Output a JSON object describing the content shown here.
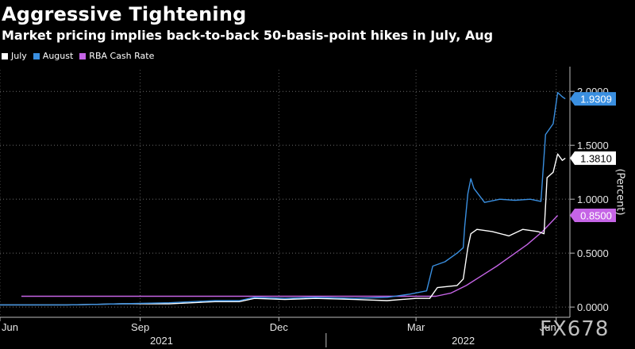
{
  "header": {
    "title": "Aggressive Tightening",
    "subtitle": "Market pricing implies back-to-back 50-basis-point hikes in July, Aug"
  },
  "watermark": "FX678",
  "chart_data": {
    "type": "line",
    "title": "Aggressive Tightening",
    "subtitle": "Market pricing implies back-to-back 50-basis-point hikes in July, Aug",
    "ylabel": "(Percent)",
    "ylim": [
      -0.08,
      2.2
    ],
    "yticks": [
      0,
      0.5,
      1,
      1.5,
      2
    ],
    "ytick_labels": [
      "0.0000",
      "0.5000",
      "1.0000",
      "1.5000",
      "2.0000"
    ],
    "xlim": [
      "2021-06-01",
      "2022-06-10"
    ],
    "xtick_labels": [
      {
        "date": "2021-06-01",
        "label": "Jun"
      },
      {
        "date": "2021-09-01",
        "label": "Sep"
      },
      {
        "date": "2021-12-01",
        "label": "Dec"
      },
      {
        "date": "2022-03-01",
        "label": "Mar"
      },
      {
        "date": "2022-06-01",
        "label": "Jun"
      }
    ],
    "year_labels": [
      {
        "date": "2021-09-15",
        "label": "2021"
      },
      {
        "date": "2022-04-01",
        "label": "2022"
      }
    ],
    "year_boundary": "2022-01-01",
    "grid": true,
    "legend_position": "top-left",
    "series": [
      {
        "name": "July",
        "color": "#ffffff",
        "last_value_label": "1.3810",
        "points": [
          [
            "2021-06-01",
            0.02
          ],
          [
            "2021-07-15",
            0.02
          ],
          [
            "2021-08-20",
            0.03
          ],
          [
            "2021-09-20",
            0.03
          ],
          [
            "2021-10-20",
            0.05
          ],
          [
            "2021-11-05",
            0.05
          ],
          [
            "2021-11-15",
            0.08
          ],
          [
            "2021-12-05",
            0.07
          ],
          [
            "2021-12-25",
            0.08
          ],
          [
            "2022-01-20",
            0.07
          ],
          [
            "2022-02-10",
            0.06
          ],
          [
            "2022-03-01",
            0.08
          ],
          [
            "2022-03-10",
            0.08
          ],
          [
            "2022-03-15",
            0.18
          ],
          [
            "2022-03-28",
            0.2
          ],
          [
            "2022-04-01",
            0.26
          ],
          [
            "2022-04-04",
            0.55
          ],
          [
            "2022-04-06",
            0.68
          ],
          [
            "2022-04-10",
            0.72
          ],
          [
            "2022-04-20",
            0.7
          ],
          [
            "2022-05-01",
            0.66
          ],
          [
            "2022-05-10",
            0.72
          ],
          [
            "2022-05-20",
            0.7
          ],
          [
            "2022-05-24",
            0.68
          ],
          [
            "2022-05-26",
            1.2
          ],
          [
            "2022-05-30",
            1.25
          ],
          [
            "2022-06-02",
            1.42
          ],
          [
            "2022-06-05",
            1.36
          ],
          [
            "2022-06-07",
            1.381
          ]
        ]
      },
      {
        "name": "August",
        "color": "#3a8fe0",
        "last_value_label": "1.9309",
        "points": [
          [
            "2021-06-01",
            0.02
          ],
          [
            "2021-07-15",
            0.02
          ],
          [
            "2021-08-20",
            0.03
          ],
          [
            "2021-09-20",
            0.04
          ],
          [
            "2021-10-20",
            0.06
          ],
          [
            "2021-11-05",
            0.06
          ],
          [
            "2021-11-15",
            0.09
          ],
          [
            "2021-12-05",
            0.08
          ],
          [
            "2021-12-25",
            0.09
          ],
          [
            "2022-01-20",
            0.08
          ],
          [
            "2022-02-10",
            0.09
          ],
          [
            "2022-02-25",
            0.12
          ],
          [
            "2022-03-08",
            0.15
          ],
          [
            "2022-03-12",
            0.38
          ],
          [
            "2022-03-20",
            0.42
          ],
          [
            "2022-03-28",
            0.5
          ],
          [
            "2022-04-01",
            0.55
          ],
          [
            "2022-04-02",
            0.75
          ],
          [
            "2022-04-04",
            1.05
          ],
          [
            "2022-04-06",
            1.19
          ],
          [
            "2022-04-08",
            1.1
          ],
          [
            "2022-04-15",
            0.97
          ],
          [
            "2022-04-25",
            1.0
          ],
          [
            "2022-05-05",
            0.99
          ],
          [
            "2022-05-15",
            1.0
          ],
          [
            "2022-05-22",
            0.98
          ],
          [
            "2022-05-25",
            1.6
          ],
          [
            "2022-05-30",
            1.7
          ],
          [
            "2022-06-02",
            1.99
          ],
          [
            "2022-06-05",
            1.95
          ],
          [
            "2022-06-07",
            1.931
          ]
        ]
      },
      {
        "name": "RBA Cash Rate",
        "color": "#c564e6",
        "last_value_label": "0.8500",
        "points": [
          [
            "2021-06-15",
            0.1
          ],
          [
            "2022-03-14",
            0.1
          ],
          [
            "2022-03-24",
            0.13
          ],
          [
            "2022-04-03",
            0.2
          ],
          [
            "2022-04-13",
            0.29
          ],
          [
            "2022-04-23",
            0.38
          ],
          [
            "2022-05-03",
            0.48
          ],
          [
            "2022-05-13",
            0.58
          ],
          [
            "2022-05-23",
            0.7
          ],
          [
            "2022-06-02",
            0.85
          ]
        ]
      }
    ]
  }
}
